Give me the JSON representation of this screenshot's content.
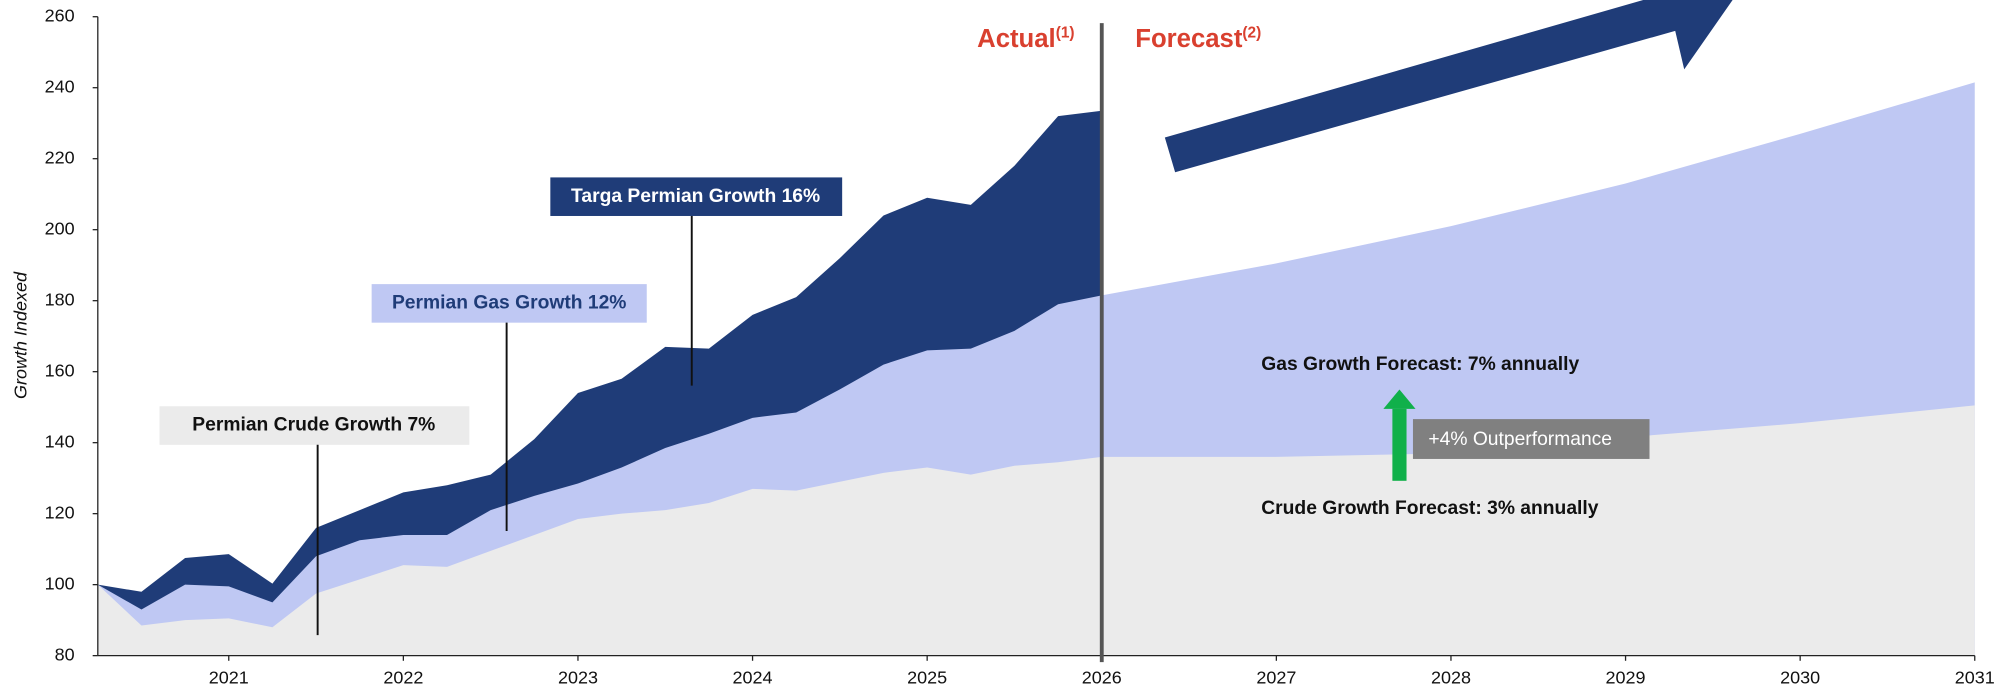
{
  "chart_data": {
    "type": "area",
    "ylabel": "Growth Indexed",
    "xlim": [
      2020.25,
      2031
    ],
    "ylim": [
      80,
      260
    ],
    "xticks": [
      2021,
      2022,
      2023,
      2024,
      2025,
      2026,
      2027,
      2028,
      2029,
      2030,
      2031
    ],
    "yticks": [
      80,
      100,
      120,
      140,
      160,
      180,
      200,
      220,
      240,
      260
    ],
    "divider_x": 2026,
    "series": [
      {
        "color": "#ebebeb",
        "x": [
          2020.25,
          2020.5,
          2020.75,
          2021,
          2021.25,
          2021.5,
          2021.75,
          2022,
          2022.25,
          2022.5,
          2022.75,
          2023,
          2023.25,
          2023.5,
          2023.75,
          2024,
          2024.25,
          2024.5,
          2024.75,
          2025,
          2025.25,
          2025.5,
          2025.75,
          2026,
          2027,
          2028,
          2029,
          2030,
          2031
        ],
        "values": [
          100,
          88.5,
          90,
          90.5,
          88,
          97.5,
          101.5,
          105.5,
          105,
          109.5,
          114,
          118.5,
          120,
          121,
          123,
          127,
          126.5,
          129,
          131.5,
          133,
          131,
          133.5,
          134.5,
          136,
          136,
          137,
          141.5,
          145.5,
          150.5
        ]
      },
      {
        "color": "#bfc8f3",
        "x": [
          2020.25,
          2020.5,
          2020.75,
          2021,
          2021.25,
          2021.5,
          2021.75,
          2022,
          2022.25,
          2022.5,
          2022.75,
          2023,
          2023.25,
          2023.5,
          2023.75,
          2024,
          2024.25,
          2024.5,
          2024.75,
          2025,
          2025.25,
          2025.5,
          2025.75,
          2026,
          2027,
          2028,
          2029,
          2030,
          2031
        ],
        "values": [
          100,
          93,
          100,
          99.5,
          95,
          108,
          112.5,
          114,
          114,
          121,
          125,
          128.5,
          133,
          138.5,
          142.5,
          147,
          148.5,
          155,
          162,
          166,
          166.5,
          171.5,
          179,
          181.5,
          190.5,
          201,
          213,
          227,
          241.5
        ]
      },
      {
        "color": "#1f3c78",
        "x": [
          2020.25,
          2020.5,
          2020.75,
          2021,
          2021.25,
          2021.5,
          2021.75,
          2022,
          2022.25,
          2022.5,
          2022.75,
          2023,
          2023.25,
          2023.5,
          2023.75,
          2024,
          2024.25,
          2024.5,
          2024.75,
          2025,
          2025.25,
          2025.5,
          2025.75,
          2026
        ],
        "values": [
          100,
          98,
          107.5,
          108.6,
          100.3,
          116,
          121,
          126,
          128,
          131,
          141,
          154,
          158,
          167,
          166.5,
          176,
          181,
          192,
          204,
          209,
          207,
          218,
          232,
          233.5
        ]
      }
    ],
    "annotations": {
      "actual": "Actual",
      "actual_note": "(1)",
      "forecast": "Forecast",
      "forecast_note": "(2)",
      "targa": "Targa Permian Growth 16%",
      "gas": "Permian Gas Growth 12%",
      "crude": "Permian Crude Growth 7%",
      "gas_forecast": "Gas Growth Forecast: 7% annually",
      "crude_forecast": "Crude Growth Forecast: 3% annually",
      "outperformance": "+4% Outperformance"
    }
  }
}
